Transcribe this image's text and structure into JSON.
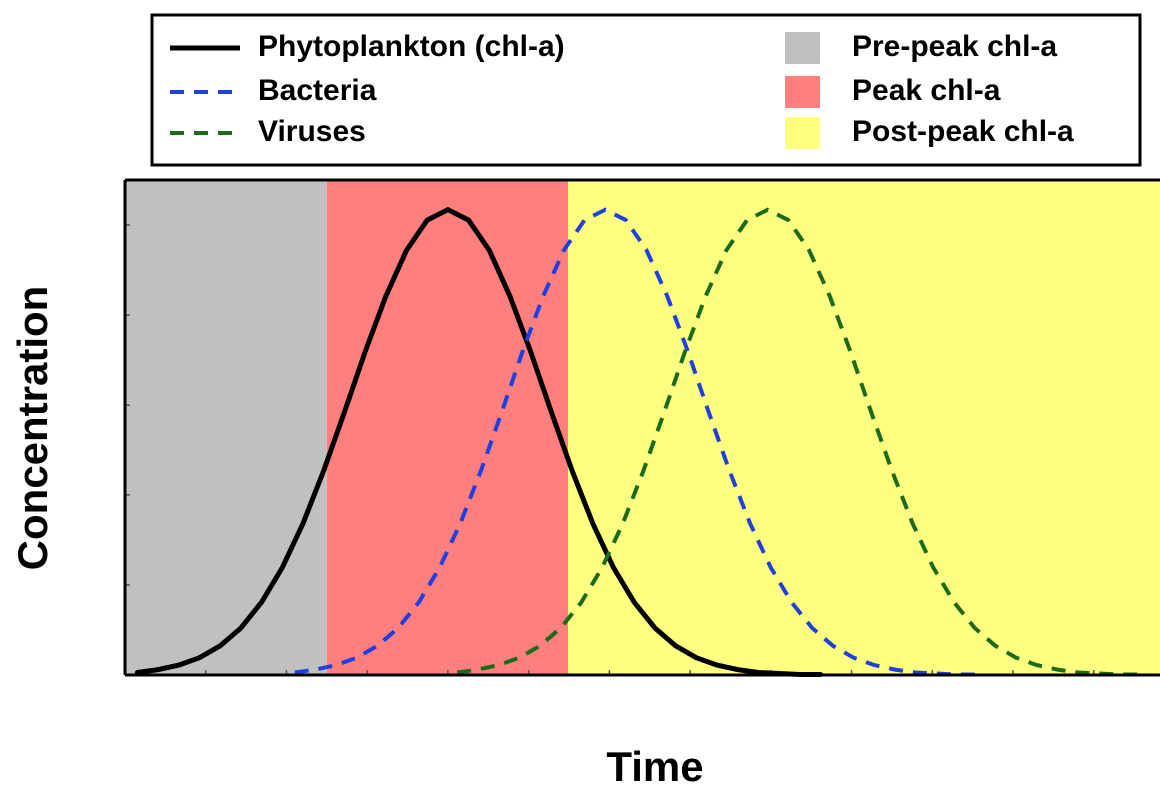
{
  "chart_data": {
    "type": "line",
    "xlabel": "Time",
    "ylabel": "Concentration",
    "xlim": [
      0,
      100
    ],
    "ylim": [
      0,
      100
    ],
    "xticks": [
      7.8,
      15.6,
      23.4,
      31.2,
      39,
      46.8,
      54.6,
      62.4,
      70.2,
      78,
      85.8,
      93.6
    ],
    "yticks": [
      18.2,
      36.4,
      54.5,
      72.7,
      90.9
    ],
    "regions": [
      {
        "name": "Pre-peak chl-a",
        "color": "#c0c0c0",
        "xrange": [
          0,
          19.5
        ]
      },
      {
        "name": "Peak chl-a",
        "color": "#ff7f7f",
        "xrange": [
          19.5,
          42.8
        ]
      },
      {
        "name": "Post-peak chl-a",
        "color": "#ffff80",
        "xrange": [
          42.8,
          100
        ]
      }
    ],
    "series": [
      {
        "name": "Phytoplankton (chl-a)",
        "color": "#000000",
        "dash": false,
        "x": [
          1.2,
          3.2,
          5.2,
          7.2,
          9.2,
          11.2,
          13.2,
          15.2,
          17.2,
          19.2,
          21.2,
          23.2,
          25.2,
          27.2,
          29.2,
          31.2,
          33.2,
          35.2,
          37.2,
          39.2,
          41.2,
          43.2,
          45.2,
          47.2,
          49.2,
          51.2,
          53.2,
          55.2,
          57.2,
          59.2,
          61.2,
          63.2,
          65.2,
          67.2
        ],
        "values": [
          0.5,
          1.1,
          2.0,
          3.5,
          5.9,
          9.5,
          14.7,
          21.7,
          30.6,
          41.3,
          53.1,
          65.3,
          76.5,
          85.8,
          91.9,
          94,
          91.9,
          85.8,
          76.5,
          65.3,
          53.1,
          41.3,
          30.6,
          21.7,
          14.7,
          9.5,
          5.9,
          3.5,
          2.0,
          1.1,
          0.5,
          0.3,
          0.1,
          0.1
        ]
      },
      {
        "name": "Bacteria",
        "color": "#1f3fdf",
        "dash": true,
        "x": [
          16.4,
          18.4,
          20.4,
          22.4,
          24.4,
          26.4,
          28.4,
          30.4,
          32.4,
          34.4,
          36.4,
          38.4,
          40.4,
          42.4,
          44.4,
          46.4,
          48.4,
          50.4,
          52.4,
          54.4,
          56.4,
          58.4,
          60.4,
          62.4,
          64.4,
          66.4,
          68.4,
          70.4,
          72.4,
          74.4,
          76.4,
          78.4,
          80.4,
          82.4
        ],
        "values": [
          0.5,
          1.1,
          2.0,
          3.5,
          5.9,
          9.5,
          14.7,
          21.7,
          30.6,
          41.3,
          53.1,
          65.3,
          76.5,
          85.8,
          91.9,
          94,
          91.9,
          85.8,
          76.5,
          65.3,
          53.1,
          41.3,
          30.6,
          21.7,
          14.7,
          9.5,
          5.9,
          3.5,
          2.0,
          1.1,
          0.5,
          0.3,
          0.1,
          0.1
        ]
      },
      {
        "name": "Viruses",
        "color": "#1a6b1a",
        "dash": true,
        "x": [
          32.1,
          34.1,
          36.1,
          38.1,
          40.1,
          42.1,
          44.1,
          46.1,
          48.1,
          50.1,
          52.1,
          54.1,
          56.1,
          58.1,
          60.1,
          62.1,
          64.1,
          66.1,
          68.1,
          70.1,
          72.1,
          74.1,
          76.1,
          78.1,
          80.1,
          82.1,
          84.1,
          86.1,
          88.1,
          90.1,
          92.1,
          94.1,
          96.1,
          98.1
        ],
        "values": [
          0.5,
          1.1,
          2.0,
          3.5,
          5.9,
          9.5,
          14.7,
          21.7,
          30.6,
          41.3,
          53.1,
          65.3,
          76.5,
          85.8,
          91.9,
          94,
          91.9,
          85.8,
          76.5,
          65.3,
          53.1,
          41.3,
          30.6,
          21.7,
          14.7,
          9.5,
          5.9,
          3.5,
          2.0,
          1.1,
          0.5,
          0.3,
          0.1,
          0.1
        ]
      }
    ]
  }
}
